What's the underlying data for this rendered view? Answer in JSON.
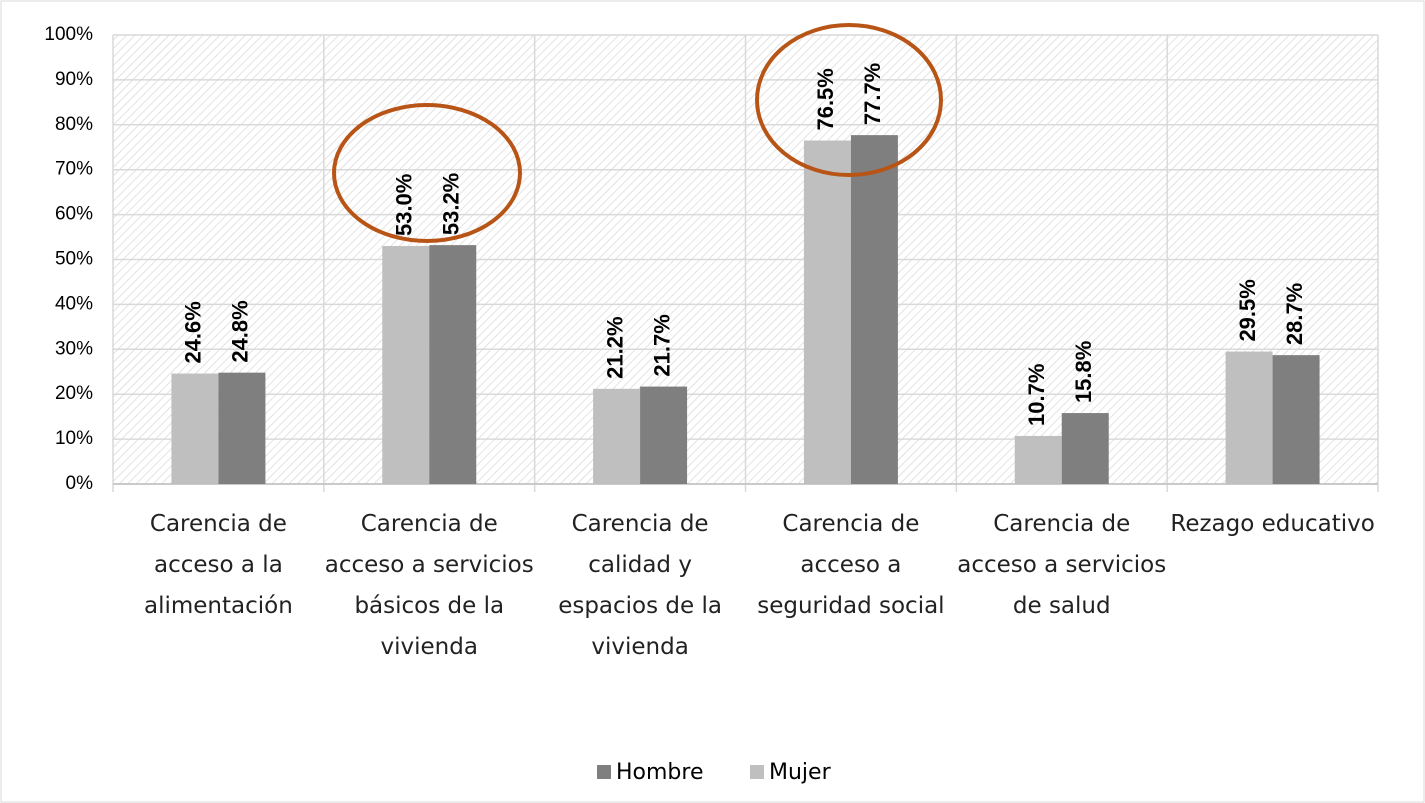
{
  "chart_data": {
    "type": "bar",
    "categories": [
      "Carencia de acceso a la alimentación",
      "Carencia de acceso a servicios básicos de la vivienda",
      "Carencia de calidad y espacios de la vivienda",
      "Carencia de acceso a seguridad social",
      "Carencia de acceso a servicios de salud",
      "Rezago educativo"
    ],
    "series": [
      {
        "name": "Mujer",
        "color": "#bfbfbf",
        "values": [
          24.6,
          53.0,
          21.2,
          76.5,
          10.7,
          29.5
        ],
        "value_labels": [
          "24.6%",
          "53.0%",
          "21.2%",
          "76.5%",
          "10.7%",
          "29.5%"
        ]
      },
      {
        "name": "Hombre",
        "color": "#7f7f7f",
        "values": [
          24.8,
          53.2,
          21.7,
          77.7,
          15.8,
          28.7
        ],
        "value_labels": [
          "24.8%",
          "53.2%",
          "21.7%",
          "77.7%",
          "15.8%",
          "28.7%"
        ]
      }
    ],
    "ylim": [
      0,
      100
    ],
    "yticks": [
      {
        "value": 0,
        "label": "0%"
      },
      {
        "value": 10,
        "label": "10%"
      },
      {
        "value": 20,
        "label": "20%"
      },
      {
        "value": 30,
        "label": "30%"
      },
      {
        "value": 40,
        "label": "40%"
      },
      {
        "value": 50,
        "label": "50%"
      },
      {
        "value": 60,
        "label": "60%"
      },
      {
        "value": 70,
        "label": "70%"
      },
      {
        "value": 80,
        "label": "80%"
      },
      {
        "value": 90,
        "label": "90%"
      },
      {
        "value": 100,
        "label": "100%"
      }
    ],
    "grid": true,
    "legend": "bottom"
  }
}
